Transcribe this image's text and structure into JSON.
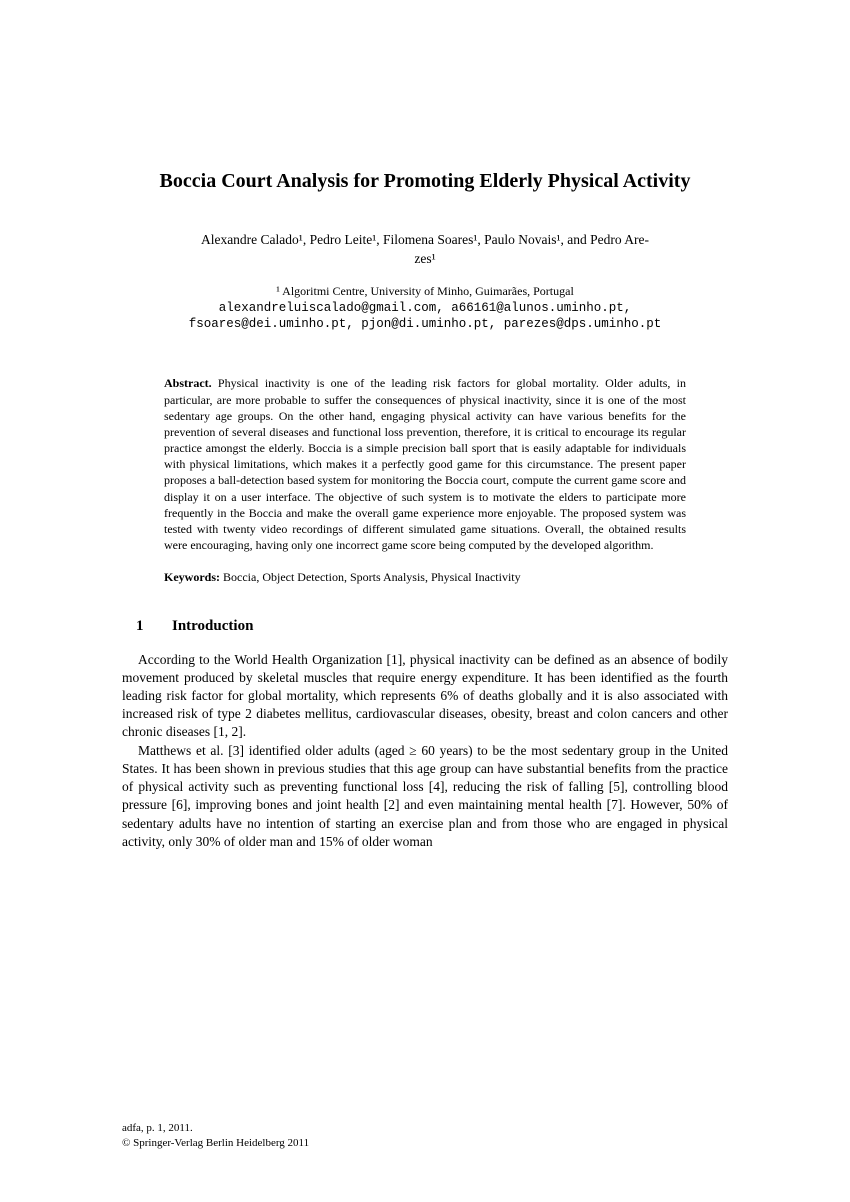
{
  "title": "Boccia Court Analysis for Promoting Elderly Physical Activity",
  "authors_line1": "Alexandre Calado¹, Pedro Leite¹, Filomena Soares¹, Paulo Novais¹, and Pedro Are-",
  "authors_line2": "zes¹",
  "affiliation": "¹ Algoritmi Centre, University of Minho, Guimarães, Portugal",
  "emails_line1": "alexandreluiscalado@gmail.com, a66161@alunos.uminho.pt,",
  "emails_line2": "fsoares@dei.uminho.pt, pjon@di.uminho.pt, parezes@dps.uminho.pt",
  "abstract_label": "Abstract.",
  "abstract_text": " Physical inactivity is one of the leading risk factors for global mortality. Older adults, in particular, are more probable to suffer the consequences of physical inactivity, since it is one of the most sedentary age groups. On the other hand, engaging physical activity can have various benefits for the prevention of several diseases and functional loss prevention, therefore, it is critical to encourage its regular practice amongst the elderly. Boccia is a simple precision ball sport that is easily adaptable for individuals with physical limitations, which makes it a perfectly good game for this circumstance. The present paper proposes a ball-detection based system for monitoring the Boccia court, compute the current game score and display it on a user interface. The objective of such system is to motivate the elders to participate more frequently in the Boccia and make the overall game experience more enjoyable. The proposed system was tested with twenty video recordings of different simulated game situations. Overall, the obtained results were encouraging, having only one incorrect game score being computed by the developed algorithm.",
  "keywords_label": "Keywords:",
  "keywords_text": " Boccia, Object Detection, Sports Analysis, Physical Inactivity",
  "section1_number": "1",
  "section1_title": "Introduction",
  "para1": "According to the World Health Organization [1], physical inactivity can be defined as an absence of bodily movement produced by skeletal muscles that require energy expenditure. It has been identified as the fourth leading risk factor for global mortality, which represents 6% of deaths globally and it is also associated with increased risk of type 2 diabetes mellitus, cardiovascular diseases, obesity, breast and colon cancers and other chronic diseases [1, 2].",
  "para2": "Matthews et al. [3] identified older adults (aged ≥ 60 years) to be the most sedentary group in the United States. It has been shown in previous studies that this age group can have substantial benefits from the practice of physical activity such as preventing functional loss [4], reducing the risk of falling [5], controlling blood pressure [6], improving bones and joint health [2] and even maintaining mental health [7]. However, 50% of sedentary adults have no intention of starting an exercise plan and from those who are engaged in physical activity, only 30% of older man and 15% of older woman",
  "footer_line1": "adfa, p. 1, 2011.",
  "footer_line2": "© Springer-Verlag Berlin Heidelberg 2011"
}
